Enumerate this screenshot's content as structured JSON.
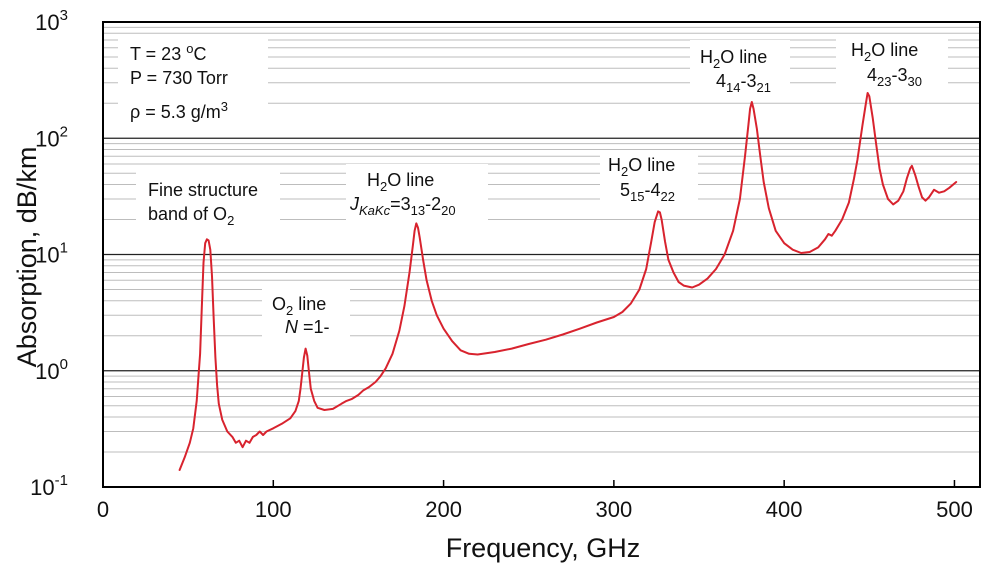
{
  "chart_data": {
    "type": "line",
    "title": "",
    "xlabel": "Frequency,  GHz",
    "ylabel": "Absorption,   dB/km",
    "xlim": [
      0,
      515
    ],
    "ylim": [
      0.1,
      1000
    ],
    "yscale": "log",
    "grid": true,
    "x_ticks": [
      "0",
      "100",
      "200",
      "300",
      "400",
      "500"
    ],
    "y_ticks": [
      {
        "base": "10",
        "exp": "-1"
      },
      {
        "base": "10",
        "exp": "0"
      },
      {
        "base": "10",
        "exp": "1"
      },
      {
        "base": "10",
        "exp": "2"
      },
      {
        "base": "10",
        "exp": "3"
      }
    ],
    "series": [
      {
        "color": "#d8232e",
        "points": [
          [
            45,
            0.14
          ],
          [
            48,
            0.18
          ],
          [
            51,
            0.24
          ],
          [
            53,
            0.32
          ],
          [
            55,
            0.55
          ],
          [
            57,
            1.4
          ],
          [
            58,
            3.5
          ],
          [
            59,
            8.5
          ],
          [
            60,
            12.5
          ],
          [
            61,
            13.5
          ],
          [
            62,
            13.2
          ],
          [
            63,
            11
          ],
          [
            64,
            6.5
          ],
          [
            65,
            2.8
          ],
          [
            66,
            1.3
          ],
          [
            67,
            0.75
          ],
          [
            68,
            0.52
          ],
          [
            70,
            0.38
          ],
          [
            73,
            0.3
          ],
          [
            76,
            0.27
          ],
          [
            78,
            0.24
          ],
          [
            80,
            0.25
          ],
          [
            82,
            0.22
          ],
          [
            84,
            0.25
          ],
          [
            86,
            0.24
          ],
          [
            88,
            0.27
          ],
          [
            90,
            0.28
          ],
          [
            92,
            0.3
          ],
          [
            94,
            0.28
          ],
          [
            96,
            0.3
          ],
          [
            100,
            0.32
          ],
          [
            105,
            0.35
          ],
          [
            110,
            0.39
          ],
          [
            113,
            0.45
          ],
          [
            115,
            0.55
          ],
          [
            116,
            0.7
          ],
          [
            117,
            0.95
          ],
          [
            118,
            1.3
          ],
          [
            119,
            1.55
          ],
          [
            120,
            1.35
          ],
          [
            121,
            0.95
          ],
          [
            122,
            0.7
          ],
          [
            124,
            0.55
          ],
          [
            126,
            0.48
          ],
          [
            130,
            0.46
          ],
          [
            135,
            0.47
          ],
          [
            140,
            0.52
          ],
          [
            143,
            0.55
          ],
          [
            146,
            0.57
          ],
          [
            150,
            0.62
          ],
          [
            153,
            0.68
          ],
          [
            156,
            0.72
          ],
          [
            160,
            0.8
          ],
          [
            163,
            0.9
          ],
          [
            166,
            1.05
          ],
          [
            170,
            1.4
          ],
          [
            174,
            2.2
          ],
          [
            177,
            3.6
          ],
          [
            180,
            7
          ],
          [
            182,
            12
          ],
          [
            183,
            16
          ],
          [
            184,
            18.5
          ],
          [
            185,
            17
          ],
          [
            186,
            14
          ],
          [
            188,
            9
          ],
          [
            190,
            6
          ],
          [
            193,
            4
          ],
          [
            196,
            3
          ],
          [
            200,
            2.3
          ],
          [
            205,
            1.8
          ],
          [
            210,
            1.5
          ],
          [
            215,
            1.4
          ],
          [
            220,
            1.38
          ],
          [
            230,
            1.45
          ],
          [
            240,
            1.55
          ],
          [
            250,
            1.7
          ],
          [
            260,
            1.85
          ],
          [
            270,
            2.05
          ],
          [
            280,
            2.3
          ],
          [
            290,
            2.6
          ],
          [
            300,
            2.9
          ],
          [
            305,
            3.2
          ],
          [
            310,
            3.8
          ],
          [
            315,
            5
          ],
          [
            319,
            7.5
          ],
          [
            322,
            13
          ],
          [
            324,
            19
          ],
          [
            326,
            23.5
          ],
          [
            327,
            23
          ],
          [
            328,
            20
          ],
          [
            330,
            13
          ],
          [
            332,
            9
          ],
          [
            335,
            7
          ],
          [
            338,
            5.8
          ],
          [
            341,
            5.4
          ],
          [
            346,
            5.2
          ],
          [
            350,
            5.5
          ],
          [
            355,
            6.2
          ],
          [
            360,
            7.5
          ],
          [
            365,
            10
          ],
          [
            370,
            16
          ],
          [
            374,
            30
          ],
          [
            377,
            70
          ],
          [
            379,
            130
          ],
          [
            380,
            180
          ],
          [
            381,
            205
          ],
          [
            382,
            180
          ],
          [
            384,
            120
          ],
          [
            386,
            70
          ],
          [
            388,
            42
          ],
          [
            391,
            25
          ],
          [
            395,
            16
          ],
          [
            400,
            12.5
          ],
          [
            405,
            11
          ],
          [
            410,
            10.3
          ],
          [
            415,
            10.5
          ],
          [
            420,
            11.5
          ],
          [
            424,
            13.5
          ],
          [
            426,
            15
          ],
          [
            428,
            14.5
          ],
          [
            430,
            16
          ],
          [
            434,
            20
          ],
          [
            438,
            28
          ],
          [
            441,
            45
          ],
          [
            443,
            65
          ],
          [
            446,
            130
          ],
          [
            448,
            200
          ],
          [
            449,
            245
          ],
          [
            450,
            230
          ],
          [
            452,
            150
          ],
          [
            454,
            90
          ],
          [
            456,
            55
          ],
          [
            458,
            40
          ],
          [
            461,
            30
          ],
          [
            464,
            27
          ],
          [
            467,
            29
          ],
          [
            470,
            35
          ],
          [
            472,
            45
          ],
          [
            474,
            55
          ],
          [
            475,
            58
          ],
          [
            477,
            48
          ],
          [
            479,
            38
          ],
          [
            481,
            31
          ],
          [
            483,
            29
          ],
          [
            485,
            31
          ],
          [
            488,
            36
          ],
          [
            491,
            34
          ],
          [
            494,
            35
          ],
          [
            497,
            37.5
          ],
          [
            501,
            42
          ]
        ]
      }
    ]
  },
  "annotations": {
    "conditions": {
      "t": "T = 23 ",
      "t_sup": "o",
      "t_unit": "C",
      "p": "P = 730 Torr",
      "rho": "ρ = 5.3 g/m",
      "rho_sup": "3"
    },
    "o2_band": {
      "line1": "Fine structure",
      "line2": "band of O",
      "line2_sub": "2"
    },
    "o2_line": {
      "line1a": "O",
      "line1_sub": "2",
      "line1b": " line",
      "line2_italic": "N",
      "line2": " =1-"
    },
    "h2o_183": {
      "line1a": "H",
      "line1_sub": "2",
      "line1b": "O line",
      "line2_italic": "J",
      "line2_italic_sub": "KaKc",
      "line2a": "=3",
      "line2_sub1": "13",
      "line2b": "-2",
      "line2_sub2": "20"
    },
    "h2o_325": {
      "line1a": "H",
      "line1_sub": "2",
      "line1b": "O line",
      "line2a": "5",
      "line2_sub1": "15",
      "line2b": "-4",
      "line2_sub2": "22"
    },
    "h2o_380": {
      "line1a": "H",
      "line1_sub": "2",
      "line1b": "O line",
      "line2a": "4",
      "line2_sub1": "14",
      "line2b": "-3",
      "line2_sub2": "21"
    },
    "h2o_448": {
      "line1a": "H",
      "line1_sub": "2",
      "line1b": "O line",
      "line2a": "4",
      "line2_sub1": "23",
      "line2b": "-3",
      "line2_sub2": "30"
    }
  }
}
